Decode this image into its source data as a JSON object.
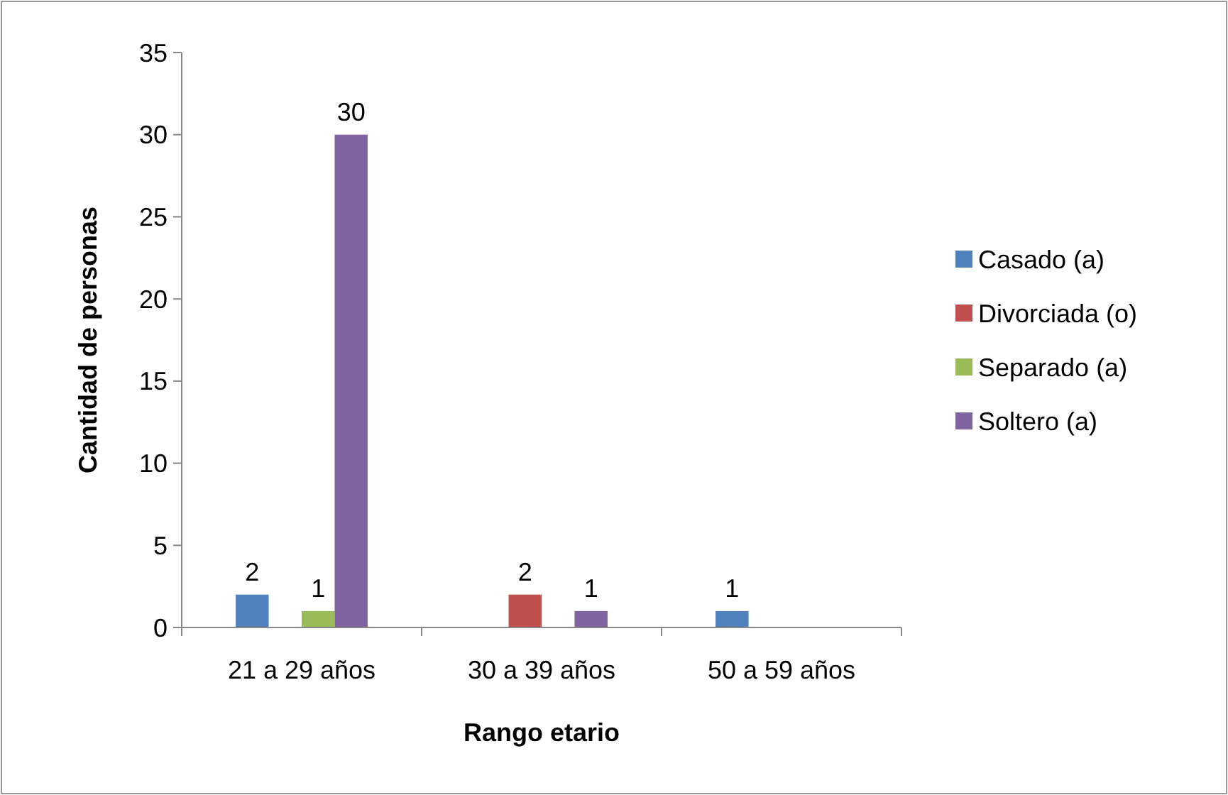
{
  "chart_data": {
    "type": "bar",
    "xlabel": "Rango etario",
    "ylabel": "Cantidad de personas",
    "categories": [
      "21 a 29 años",
      "30 a 39 años",
      "50 a 59 años"
    ],
    "series": [
      {
        "name": "Casado (a)",
        "color": "#4f81bd",
        "values": [
          2,
          null,
          1
        ]
      },
      {
        "name": "Divorciada (o)",
        "color": "#c0504d",
        "values": [
          null,
          2,
          null
        ]
      },
      {
        "name": "Separado (a)",
        "color": "#9bbb59",
        "values": [
          1,
          null,
          null
        ]
      },
      {
        "name": "Soltero (a)",
        "color": "#8064a2",
        "values": [
          30,
          1,
          null
        ]
      }
    ],
    "ylim": [
      0,
      35
    ],
    "yticks": [
      0,
      5,
      10,
      15,
      20,
      25,
      30,
      35
    ],
    "data_labels": true,
    "legend": "right",
    "grid": false
  }
}
